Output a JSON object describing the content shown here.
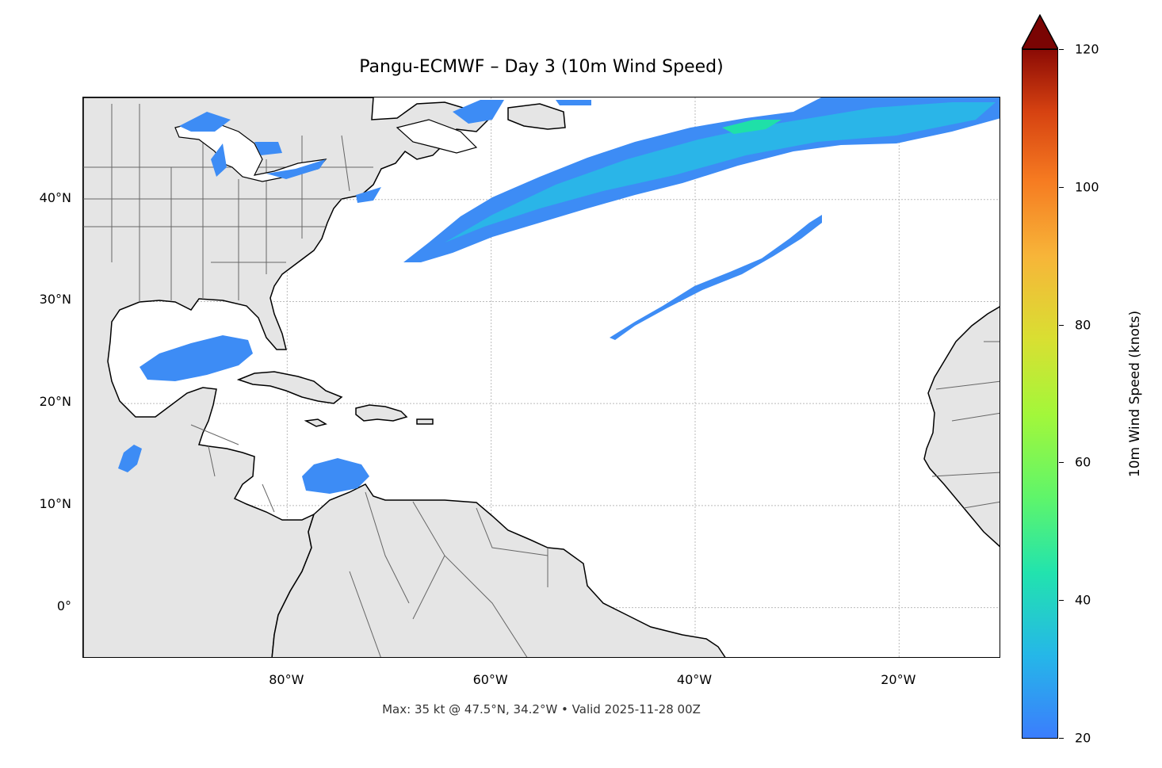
{
  "map": {
    "title": "Pangu-ECMWF – Day 3 (10m Wind Speed)",
    "footer": "Max: 35 kt @ 47.5°N, 34.2°W • Valid 2025-11-28 00Z",
    "extent": {
      "lon_min": -100,
      "lon_max": -10,
      "lat_min": -5,
      "lat_max": 50
    },
    "lat_ticks": [
      {
        "value": 40,
        "label": "40°N"
      },
      {
        "value": 30,
        "label": "30°N"
      },
      {
        "value": 20,
        "label": "20°N"
      },
      {
        "value": 10,
        "label": "10°N"
      },
      {
        "value": 0,
        "label": "0°"
      }
    ],
    "lon_ticks": [
      {
        "value": -80,
        "label": "80°W"
      },
      {
        "value": -60,
        "label": "60°W"
      },
      {
        "value": -40,
        "label": "40°W"
      },
      {
        "value": -20,
        "label": "20°W"
      }
    ],
    "colors": {
      "land": "#e5e5e5",
      "coast": "#000000",
      "borders": "#666666",
      "grid": "#bbbbbb",
      "wind_low": "#3d8cf5",
      "wind_mid": "#2ab5e8",
      "wind_peak": "#1fe0a8"
    }
  },
  "colorbar": {
    "label": "10m Wind Speed (knots)",
    "min": 20,
    "max": 120,
    "ticks": [
      {
        "value": 120,
        "label": "120"
      },
      {
        "value": 100,
        "label": "100"
      },
      {
        "value": 80,
        "label": "80"
      },
      {
        "value": 60,
        "label": "60"
      },
      {
        "value": 40,
        "label": "40"
      },
      {
        "value": 20,
        "label": "20"
      }
    ]
  },
  "wind_areas": [
    {
      "name": "north-atlantic-jet",
      "peak_kt": 35
    },
    {
      "name": "subtropical-band",
      "peak_kt": 25
    },
    {
      "name": "gulf-of-mexico",
      "peak_kt": 25
    },
    {
      "name": "caribbean",
      "peak_kt": 25
    },
    {
      "name": "gulf-of-tehuantepec",
      "peak_kt": 25
    },
    {
      "name": "great-lakes",
      "peak_kt": 22
    },
    {
      "name": "gulf-of-st-lawrence",
      "peak_kt": 24
    }
  ]
}
